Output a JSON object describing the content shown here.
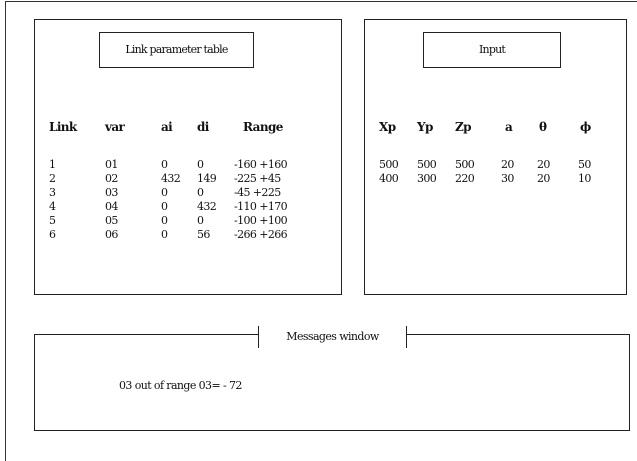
{
  "link_table": {
    "title": "Link parameter table",
    "headers": [
      "Link",
      "var",
      "ai",
      "di",
      "Range"
    ],
    "rows": [
      {
        "link": "1",
        "var": "01",
        "ai": "0",
        "di": "0",
        "range": "-160 +160"
      },
      {
        "link": "2",
        "var": "02",
        "ai": "432",
        "di": "149",
        "range": "-225 +45"
      },
      {
        "link": "3",
        "var": "03",
        "ai": "0",
        "di": "0",
        "range": "-45 +225"
      },
      {
        "link": "4",
        "var": "04",
        "ai": "0",
        "di": "432",
        "range": "-110 +170"
      },
      {
        "link": "5",
        "var": "05",
        "ai": "0",
        "di": "0",
        "range": "-100 +100"
      },
      {
        "link": "6",
        "var": "06",
        "ai": "0",
        "di": "56",
        "range": "-266 +266"
      }
    ]
  },
  "input_table": {
    "title": "Input",
    "headers": [
      "Xp",
      "Yp",
      "Zp",
      "a",
      "θ",
      "ϕ"
    ],
    "rows": [
      [
        "500",
        "500",
        "500",
        "20",
        "20",
        "50"
      ],
      [
        "400",
        "300",
        "220",
        "30",
        "20",
        "10"
      ]
    ]
  },
  "messages": {
    "title": "Messages window",
    "text": "03 out of range 03=  - 72"
  }
}
